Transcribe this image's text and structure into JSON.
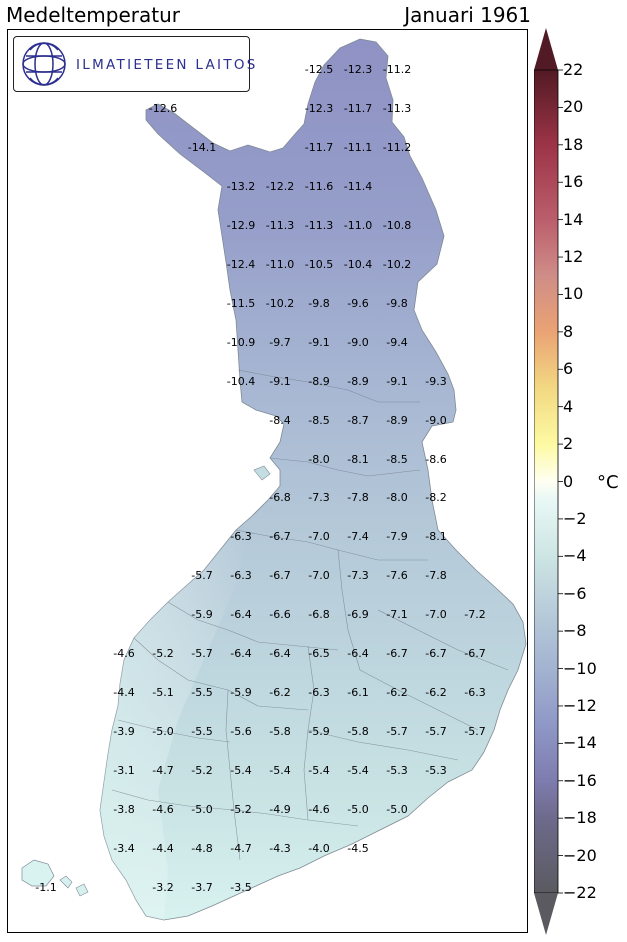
{
  "title_left": "Medeltemperatur",
  "title_right": "Januari 1961",
  "logo": {
    "text": "ILMATIETEEN LAITOS",
    "icon": "fmi-globe-logo-icon",
    "color": "#2b2f8f"
  },
  "colorbar": {
    "unit": "°C",
    "min": -22,
    "max": 22,
    "ticks": [
      "22",
      "20",
      "18",
      "16",
      "14",
      "12",
      "10",
      "8",
      "6",
      "4",
      "2",
      "0",
      "−2",
      "−4",
      "−6",
      "−8",
      "−10",
      "−12",
      "−14",
      "−16",
      "−18",
      "−20",
      "−22"
    ],
    "tick_values": [
      22,
      20,
      18,
      16,
      14,
      12,
      10,
      8,
      6,
      4,
      2,
      0,
      -2,
      -4,
      -6,
      -8,
      -10,
      -12,
      -14,
      -16,
      -18,
      -20,
      -22
    ],
    "color_stops": [
      {
        "v": -22,
        "c": "#5a5a60"
      },
      {
        "v": -18,
        "c": "#6e6a8c"
      },
      {
        "v": -16,
        "c": "#7e7cae"
      },
      {
        "v": -13,
        "c": "#8f98c6"
      },
      {
        "v": -10,
        "c": "#a3b3d1"
      },
      {
        "v": -7,
        "c": "#b7cbd9"
      },
      {
        "v": -4,
        "c": "#cde5e4"
      },
      {
        "v": -1,
        "c": "#e8f8f5"
      },
      {
        "v": 0,
        "c": "#fffff2"
      },
      {
        "v": 2,
        "c": "#fdfaa3"
      },
      {
        "v": 5,
        "c": "#f2d882"
      },
      {
        "v": 8,
        "c": "#eaa374"
      },
      {
        "v": 11,
        "c": "#cf8d87"
      },
      {
        "v": 14,
        "c": "#bb5e6c"
      },
      {
        "v": 18,
        "c": "#9c3447"
      },
      {
        "v": 22,
        "c": "#521a24"
      }
    ]
  },
  "grid_values": [
    {
      "value": "-12.5",
      "lon": 0,
      "lat": 0
    },
    {
      "value": "-12.3",
      "lon": 1,
      "lat": 0
    },
    {
      "value": "-11.2",
      "lon": 2,
      "lat": 0
    },
    {
      "value": "-12.6",
      "lon": -4,
      "lat": 1
    },
    {
      "value": "-12.3",
      "lon": 0,
      "lat": 1
    },
    {
      "value": "-11.7",
      "lon": 1,
      "lat": 1
    },
    {
      "value": "-11.3",
      "lon": 2,
      "lat": 1
    },
    {
      "value": "-14.1",
      "lon": -3,
      "lat": 2
    },
    {
      "value": "-11.7",
      "lon": 0,
      "lat": 2
    },
    {
      "value": "-11.1",
      "lon": 1,
      "lat": 2
    },
    {
      "value": "-11.2",
      "lon": 2,
      "lat": 2
    },
    {
      "value": "-13.2",
      "lon": -2,
      "lat": 3
    },
    {
      "value": "-12.2",
      "lon": -1,
      "lat": 3
    },
    {
      "value": "-11.6",
      "lon": 0,
      "lat": 3
    },
    {
      "value": "-11.4",
      "lon": 1,
      "lat": 3
    },
    {
      "value": "-12.9",
      "lon": -2,
      "lat": 4
    },
    {
      "value": "-11.3",
      "lon": -1,
      "lat": 4
    },
    {
      "value": "-11.3",
      "lon": 0,
      "lat": 4
    },
    {
      "value": "-11.0",
      "lon": 1,
      "lat": 4
    },
    {
      "value": "-10.8",
      "lon": 2,
      "lat": 4
    },
    {
      "value": "-12.4",
      "lon": -2,
      "lat": 5
    },
    {
      "value": "-11.0",
      "lon": -1,
      "lat": 5
    },
    {
      "value": "-10.5",
      "lon": 0,
      "lat": 5
    },
    {
      "value": "-10.4",
      "lon": 1,
      "lat": 5
    },
    {
      "value": "-10.2",
      "lon": 2,
      "lat": 5
    },
    {
      "value": "-11.5",
      "lon": -2,
      "lat": 6
    },
    {
      "value": "-10.2",
      "lon": -1,
      "lat": 6
    },
    {
      "value": "-9.8",
      "lon": 0,
      "lat": 6
    },
    {
      "value": "-9.6",
      "lon": 1,
      "lat": 6
    },
    {
      "value": "-9.8",
      "lon": 2,
      "lat": 6
    },
    {
      "value": "-10.9",
      "lon": -2,
      "lat": 7
    },
    {
      "value": "-9.7",
      "lon": -1,
      "lat": 7
    },
    {
      "value": "-9.1",
      "lon": 0,
      "lat": 7
    },
    {
      "value": "-9.0",
      "lon": 1,
      "lat": 7
    },
    {
      "value": "-9.4",
      "lon": 2,
      "lat": 7
    },
    {
      "value": "-10.4",
      "lon": -2,
      "lat": 8
    },
    {
      "value": "-9.1",
      "lon": -1,
      "lat": 8
    },
    {
      "value": "-8.9",
      "lon": 0,
      "lat": 8
    },
    {
      "value": "-8.9",
      "lon": 1,
      "lat": 8
    },
    {
      "value": "-9.1",
      "lon": 2,
      "lat": 8
    },
    {
      "value": "-9.3",
      "lon": 3,
      "lat": 8
    },
    {
      "value": "-8.4",
      "lon": -1,
      "lat": 9
    },
    {
      "value": "-8.5",
      "lon": 0,
      "lat": 9
    },
    {
      "value": "-8.7",
      "lon": 1,
      "lat": 9
    },
    {
      "value": "-8.9",
      "lon": 2,
      "lat": 9
    },
    {
      "value": "-9.0",
      "lon": 3,
      "lat": 9
    },
    {
      "value": "-8.0",
      "lon": 0,
      "lat": 10
    },
    {
      "value": "-8.1",
      "lon": 1,
      "lat": 10
    },
    {
      "value": "-8.5",
      "lon": 2,
      "lat": 10
    },
    {
      "value": "-8.6",
      "lon": 3,
      "lat": 10
    },
    {
      "value": "-6.8",
      "lon": -1,
      "lat": 11
    },
    {
      "value": "-7.3",
      "lon": 0,
      "lat": 11
    },
    {
      "value": "-7.8",
      "lon": 1,
      "lat": 11
    },
    {
      "value": "-8.0",
      "lon": 2,
      "lat": 11
    },
    {
      "value": "-8.2",
      "lon": 3,
      "lat": 11
    },
    {
      "value": "-6.3",
      "lon": -2,
      "lat": 12
    },
    {
      "value": "-6.7",
      "lon": -1,
      "lat": 12
    },
    {
      "value": "-7.0",
      "lon": 0,
      "lat": 12
    },
    {
      "value": "-7.4",
      "lon": 1,
      "lat": 12
    },
    {
      "value": "-7.9",
      "lon": 2,
      "lat": 12
    },
    {
      "value": "-8.1",
      "lon": 3,
      "lat": 12
    },
    {
      "value": "-5.7",
      "lon": -3,
      "lat": 13
    },
    {
      "value": "-6.3",
      "lon": -2,
      "lat": 13
    },
    {
      "value": "-6.7",
      "lon": -1,
      "lat": 13
    },
    {
      "value": "-7.0",
      "lon": 0,
      "lat": 13
    },
    {
      "value": "-7.3",
      "lon": 1,
      "lat": 13
    },
    {
      "value": "-7.6",
      "lon": 2,
      "lat": 13
    },
    {
      "value": "-7.8",
      "lon": 3,
      "lat": 13
    },
    {
      "value": "-5.9",
      "lon": -3,
      "lat": 14
    },
    {
      "value": "-6.4",
      "lon": -2,
      "lat": 14
    },
    {
      "value": "-6.6",
      "lon": -1,
      "lat": 14
    },
    {
      "value": "-6.8",
      "lon": 0,
      "lat": 14
    },
    {
      "value": "-6.9",
      "lon": 1,
      "lat": 14
    },
    {
      "value": "-7.1",
      "lon": 2,
      "lat": 14
    },
    {
      "value": "-7.0",
      "lon": 3,
      "lat": 14
    },
    {
      "value": "-7.2",
      "lon": 4,
      "lat": 14
    },
    {
      "value": "-4.6",
      "lon": -5,
      "lat": 15
    },
    {
      "value": "-5.2",
      "lon": -4,
      "lat": 15
    },
    {
      "value": "-5.7",
      "lon": -3,
      "lat": 15
    },
    {
      "value": "-6.4",
      "lon": -2,
      "lat": 15
    },
    {
      "value": "-6.4",
      "lon": -1,
      "lat": 15
    },
    {
      "value": "-6.5",
      "lon": 0,
      "lat": 15
    },
    {
      "value": "-6.4",
      "lon": 1,
      "lat": 15
    },
    {
      "value": "-6.7",
      "lon": 2,
      "lat": 15
    },
    {
      "value": "-6.7",
      "lon": 3,
      "lat": 15
    },
    {
      "value": "-6.7",
      "lon": 4,
      "lat": 15
    },
    {
      "value": "-4.4",
      "lon": -5,
      "lat": 16
    },
    {
      "value": "-5.1",
      "lon": -4,
      "lat": 16
    },
    {
      "value": "-5.5",
      "lon": -3,
      "lat": 16
    },
    {
      "value": "-5.9",
      "lon": -2,
      "lat": 16
    },
    {
      "value": "-6.2",
      "lon": -1,
      "lat": 16
    },
    {
      "value": "-6.3",
      "lon": 0,
      "lat": 16
    },
    {
      "value": "-6.1",
      "lon": 1,
      "lat": 16
    },
    {
      "value": "-6.2",
      "lon": 2,
      "lat": 16
    },
    {
      "value": "-6.2",
      "lon": 3,
      "lat": 16
    },
    {
      "value": "-6.3",
      "lon": 4,
      "lat": 16
    },
    {
      "value": "-3.9",
      "lon": -5,
      "lat": 17
    },
    {
      "value": "-5.0",
      "lon": -4,
      "lat": 17
    },
    {
      "value": "-5.5",
      "lon": -3,
      "lat": 17
    },
    {
      "value": "-5.6",
      "lon": -2,
      "lat": 17
    },
    {
      "value": "-5.8",
      "lon": -1,
      "lat": 17
    },
    {
      "value": "-5.9",
      "lon": 0,
      "lat": 17
    },
    {
      "value": "-5.8",
      "lon": 1,
      "lat": 17
    },
    {
      "value": "-5.7",
      "lon": 2,
      "lat": 17
    },
    {
      "value": "-5.7",
      "lon": 3,
      "lat": 17
    },
    {
      "value": "-5.7",
      "lon": 4,
      "lat": 17
    },
    {
      "value": "-3.1",
      "lon": -5,
      "lat": 18
    },
    {
      "value": "-4.7",
      "lon": -4,
      "lat": 18
    },
    {
      "value": "-5.2",
      "lon": -3,
      "lat": 18
    },
    {
      "value": "-5.4",
      "lon": -2,
      "lat": 18
    },
    {
      "value": "-5.4",
      "lon": -1,
      "lat": 18
    },
    {
      "value": "-5.4",
      "lon": 0,
      "lat": 18
    },
    {
      "value": "-5.4",
      "lon": 1,
      "lat": 18
    },
    {
      "value": "-5.3",
      "lon": 2,
      "lat": 18
    },
    {
      "value": "-5.3",
      "lon": 3,
      "lat": 18
    },
    {
      "value": "-3.8",
      "lon": -5,
      "lat": 19
    },
    {
      "value": "-4.6",
      "lon": -4,
      "lat": 19
    },
    {
      "value": "-5.0",
      "lon": -3,
      "lat": 19
    },
    {
      "value": "-5.2",
      "lon": -2,
      "lat": 19
    },
    {
      "value": "-4.9",
      "lon": -1,
      "lat": 19
    },
    {
      "value": "-4.6",
      "lon": 0,
      "lat": 19
    },
    {
      "value": "-5.0",
      "lon": 1,
      "lat": 19
    },
    {
      "value": "-5.0",
      "lon": 2,
      "lat": 19
    },
    {
      "value": "-3.4",
      "lon": -5,
      "lat": 20
    },
    {
      "value": "-4.4",
      "lon": -4,
      "lat": 20
    },
    {
      "value": "-4.8",
      "lon": -3,
      "lat": 20
    },
    {
      "value": "-4.7",
      "lon": -2,
      "lat": 20
    },
    {
      "value": "-4.3",
      "lon": -1,
      "lat": 20
    },
    {
      "value": "-4.0",
      "lon": 0,
      "lat": 20
    },
    {
      "value": "-4.5",
      "lon": 1,
      "lat": 20
    },
    {
      "value": "-1.1",
      "lon": -7,
      "lat": 21
    },
    {
      "value": "-3.2",
      "lon": -4,
      "lat": 21
    },
    {
      "value": "-3.7",
      "lon": -3,
      "lat": 21
    },
    {
      "value": "-3.5",
      "lon": -2,
      "lat": 21
    }
  ]
}
